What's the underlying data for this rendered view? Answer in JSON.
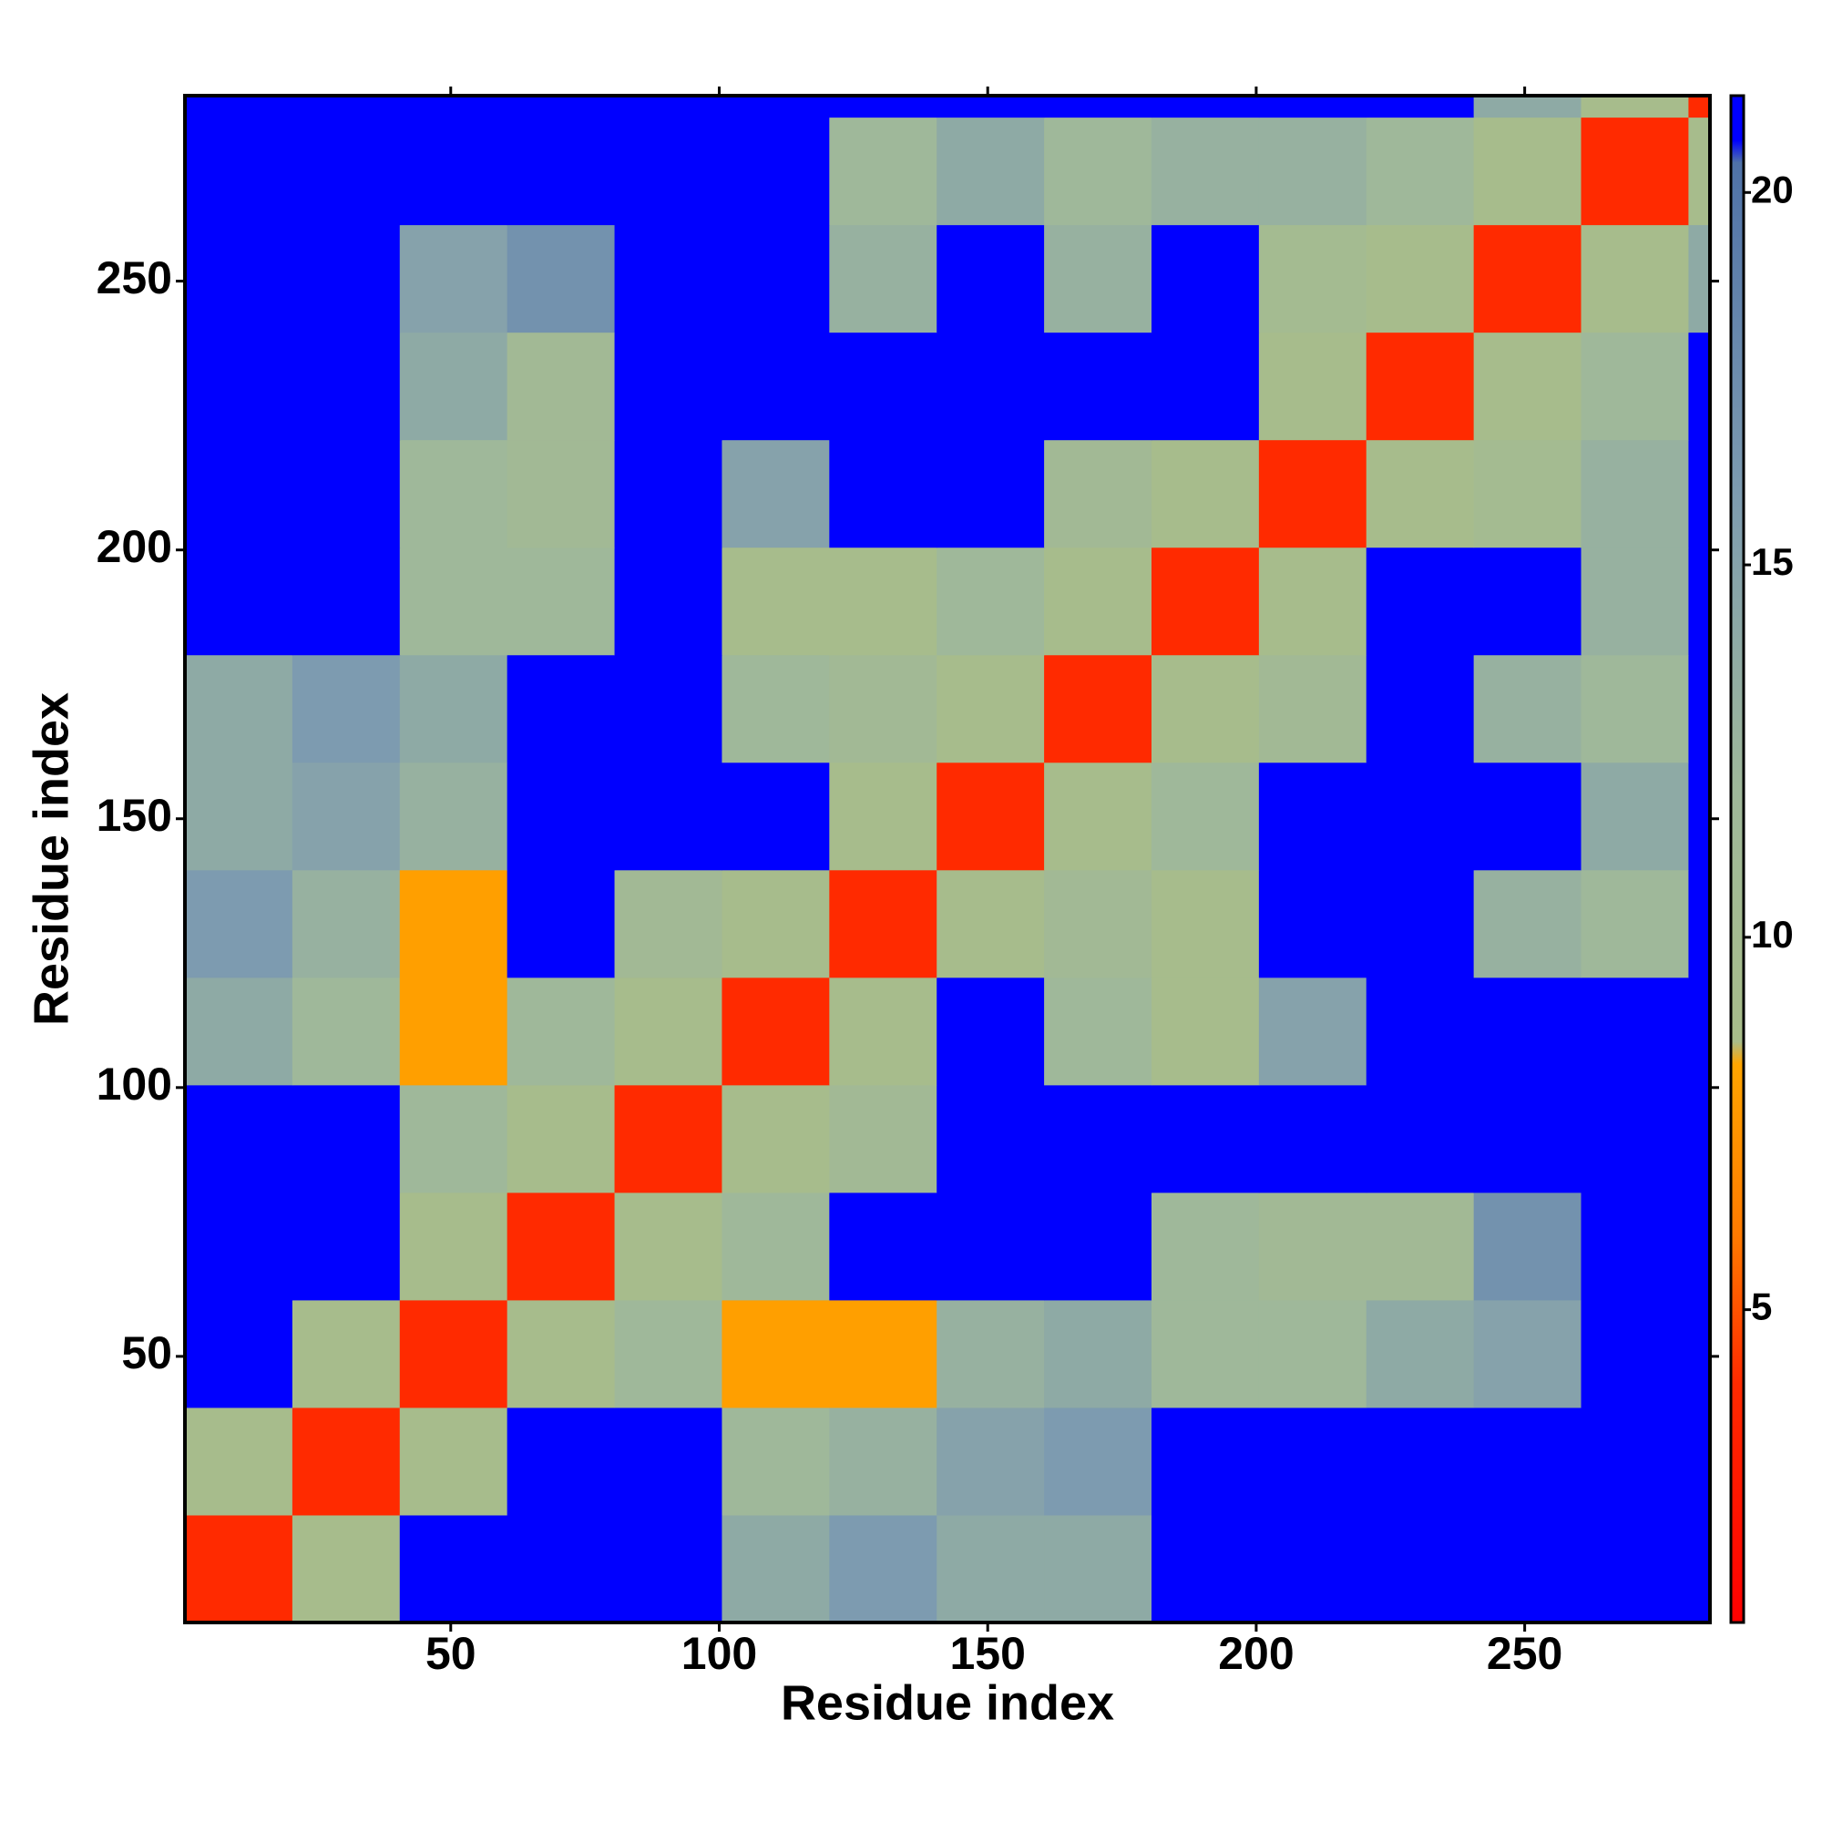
{
  "chart_data": {
    "type": "heatmap",
    "x_label": "Residue index",
    "y_label": "Residue index",
    "x_bins": [
      0.5,
      20.5,
      40.5,
      60.5,
      80.5,
      100.5,
      120.5,
      140.5,
      160.5,
      180.5,
      200.5,
      220.5,
      240.5,
      260.5,
      280.5,
      284.5
    ],
    "y_bins": [
      0.5,
      20.5,
      40.5,
      60.5,
      80.5,
      100.5,
      120.5,
      140.5,
      160.5,
      180.5,
      200.5,
      220.5,
      240.5,
      260.5,
      280.5,
      284.5
    ],
    "z": [
      [
        4,
        9,
        21,
        21,
        21,
        14,
        16,
        14,
        14,
        21,
        21,
        21,
        21,
        21,
        21
      ],
      [
        9,
        4,
        9,
        21,
        21,
        12,
        13,
        15,
        16,
        21,
        21,
        21,
        21,
        21,
        21
      ],
      [
        21,
        9,
        4,
        9,
        12,
        8,
        8,
        13,
        14,
        12,
        12,
        14,
        15,
        21,
        21
      ],
      [
        21,
        21,
        9,
        4,
        9,
        12,
        21,
        21,
        21,
        12,
        11,
        11,
        17,
        21,
        21
      ],
      [
        21,
        21,
        12,
        9,
        4,
        9,
        11,
        21,
        21,
        21,
        21,
        21,
        21,
        21,
        21
      ],
      [
        14,
        12,
        8,
        12,
        9,
        4,
        9,
        21,
        12,
        9,
        15,
        21,
        21,
        21,
        21
      ],
      [
        16,
        13,
        8,
        21,
        11,
        9,
        4,
        9,
        11,
        9,
        21,
        21,
        13,
        12,
        21
      ],
      [
        14,
        15,
        13,
        21,
        21,
        21,
        9,
        4,
        9,
        12,
        21,
        21,
        21,
        14,
        21
      ],
      [
        14,
        16,
        14,
        21,
        21,
        12,
        11,
        9,
        4,
        9,
        11,
        21,
        13,
        12,
        21
      ],
      [
        21,
        21,
        12,
        12,
        21,
        9,
        9,
        12,
        9,
        4,
        9,
        21,
        21,
        13,
        21
      ],
      [
        21,
        21,
        12,
        11,
        21,
        15,
        21,
        21,
        11,
        9,
        4,
        9,
        10,
        13,
        21
      ],
      [
        21,
        21,
        14,
        11,
        21,
        21,
        21,
        21,
        21,
        21,
        9,
        4,
        9,
        12,
        21
      ],
      [
        21,
        21,
        15,
        17,
        21,
        21,
        13,
        21,
        13,
        21,
        10,
        9,
        4,
        9,
        14
      ],
      [
        21,
        21,
        21,
        21,
        21,
        21,
        12,
        14,
        12,
        13,
        13,
        12,
        9,
        4,
        9
      ],
      [
        21,
        21,
        21,
        21,
        21,
        21,
        21,
        21,
        21,
        21,
        21,
        21,
        14,
        9,
        4
      ]
    ],
    "xlim": [
      0.5,
      284.5
    ],
    "ylim": [
      0.5,
      284.5
    ],
    "xticks": [
      50,
      100,
      150,
      200,
      250
    ],
    "yticks": [
      50,
      100,
      150,
      200,
      250
    ],
    "colorbar": {
      "lim": [
        0.8,
        21.3
      ],
      "ticks": [
        5,
        10,
        15,
        20
      ]
    },
    "colorscale": [
      [
        0.8,
        "#ff0000"
      ],
      [
        4,
        "#ff2a00"
      ],
      [
        6,
        "#ff7a00"
      ],
      [
        8.3,
        "#ffa500"
      ],
      [
        8.6,
        "#a8bd8a"
      ],
      [
        12,
        "#9fb89a"
      ],
      [
        16,
        "#7d9bb0"
      ],
      [
        20.4,
        "#4f72a8"
      ],
      [
        20.7,
        "#0000ff"
      ],
      [
        21.3,
        "#0000ff"
      ]
    ]
  }
}
